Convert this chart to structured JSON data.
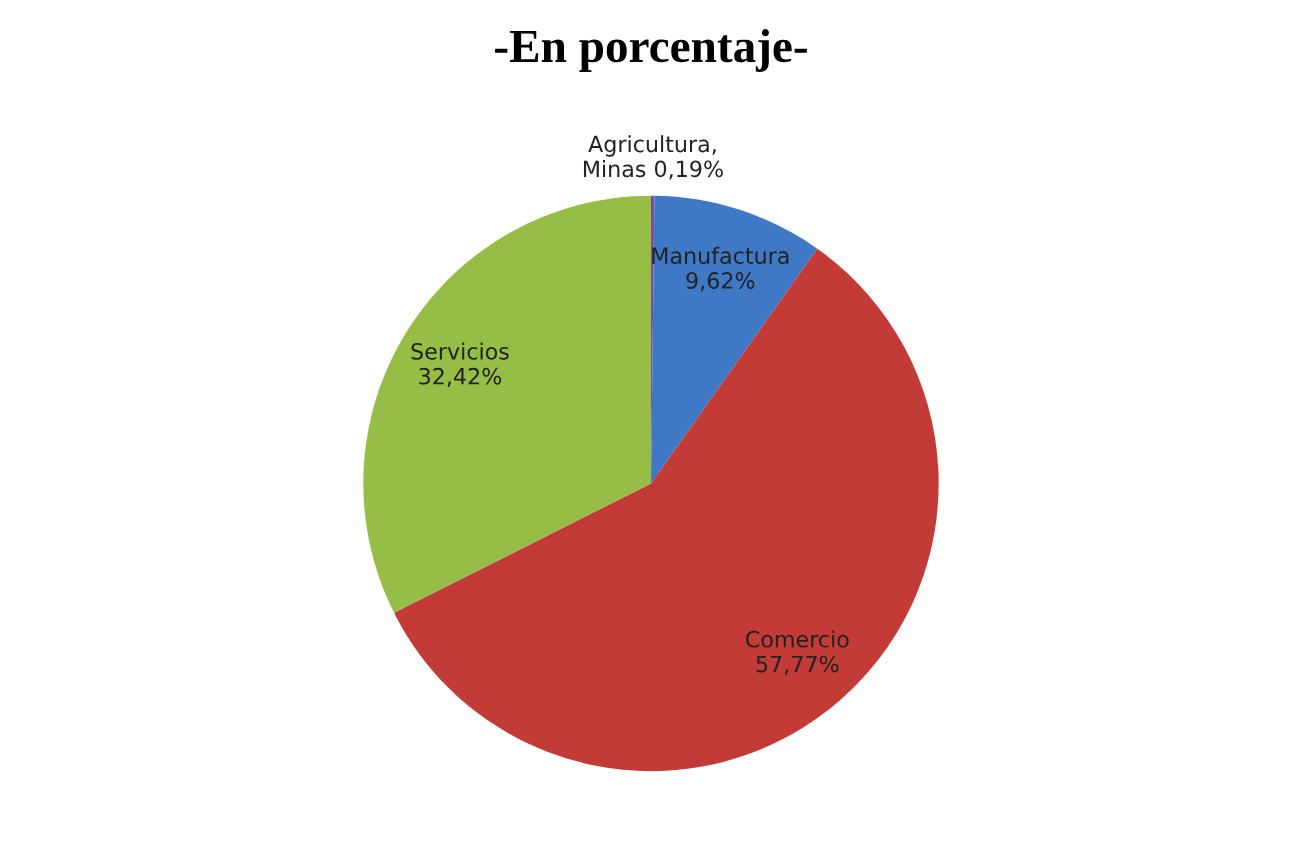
{
  "chart_data": {
    "type": "pie",
    "title": "-En porcentaje-",
    "categories": [
      "Agricultura, Minas",
      "Manufactura",
      "Comercio",
      "Servicios"
    ],
    "values": [
      0.19,
      9.62,
      57.77,
      32.42
    ],
    "value_labels": [
      "0,19%",
      "9,62%",
      "57,77%",
      "32,42%"
    ],
    "colors": [
      "#7f4f9f",
      "#3f78c4",
      "#c23b37",
      "#96be47"
    ]
  }
}
